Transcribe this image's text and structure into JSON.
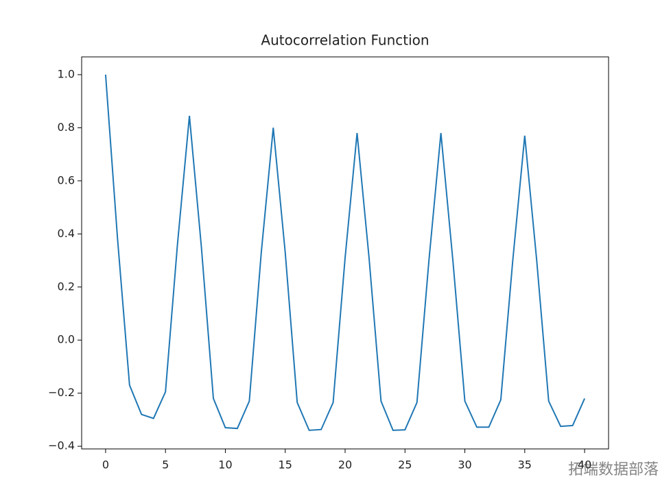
{
  "chart_data": {
    "type": "line",
    "title": "Autocorrelation Function",
    "x": [
      0,
      1,
      2,
      3,
      4,
      5,
      6,
      7,
      8,
      9,
      10,
      11,
      12,
      13,
      14,
      15,
      16,
      17,
      18,
      19,
      20,
      21,
      22,
      23,
      24,
      25,
      26,
      27,
      28,
      29,
      30,
      31,
      32,
      33,
      34,
      35,
      36,
      37,
      38,
      39,
      40
    ],
    "series": [
      {
        "name": "acf",
        "color": "#1f77b4",
        "values": [
          1.0,
          0.38,
          -0.17,
          -0.28,
          -0.295,
          -0.195,
          0.36,
          0.845,
          0.35,
          -0.22,
          -0.33,
          -0.333,
          -0.23,
          0.33,
          0.8,
          0.33,
          -0.235,
          -0.34,
          -0.337,
          -0.235,
          0.31,
          0.78,
          0.31,
          -0.23,
          -0.34,
          -0.338,
          -0.235,
          0.3,
          0.78,
          0.3,
          -0.23,
          -0.328,
          -0.328,
          -0.225,
          0.3,
          0.77,
          0.3,
          -0.23,
          -0.325,
          -0.322,
          -0.22
        ]
      }
    ],
    "xlim": [
      -2,
      42
    ],
    "ylim": [
      -0.41,
      1.067
    ],
    "xticks": [
      0,
      5,
      10,
      15,
      20,
      25,
      30,
      35,
      40
    ],
    "yticks": [
      {
        "value": -0.4,
        "label": "−0.4"
      },
      {
        "value": -0.2,
        "label": "−0.2"
      },
      {
        "value": 0,
        "label": "0.0"
      },
      {
        "value": 0.2,
        "label": "0.2"
      },
      {
        "value": 0.4,
        "label": "0.4"
      },
      {
        "value": 0.6,
        "label": "0.6"
      },
      {
        "value": 0.8,
        "label": "0.8"
      },
      {
        "value": 1.0,
        "label": "1.0"
      }
    ],
    "annotations": [
      "拓端数据部落"
    ]
  }
}
